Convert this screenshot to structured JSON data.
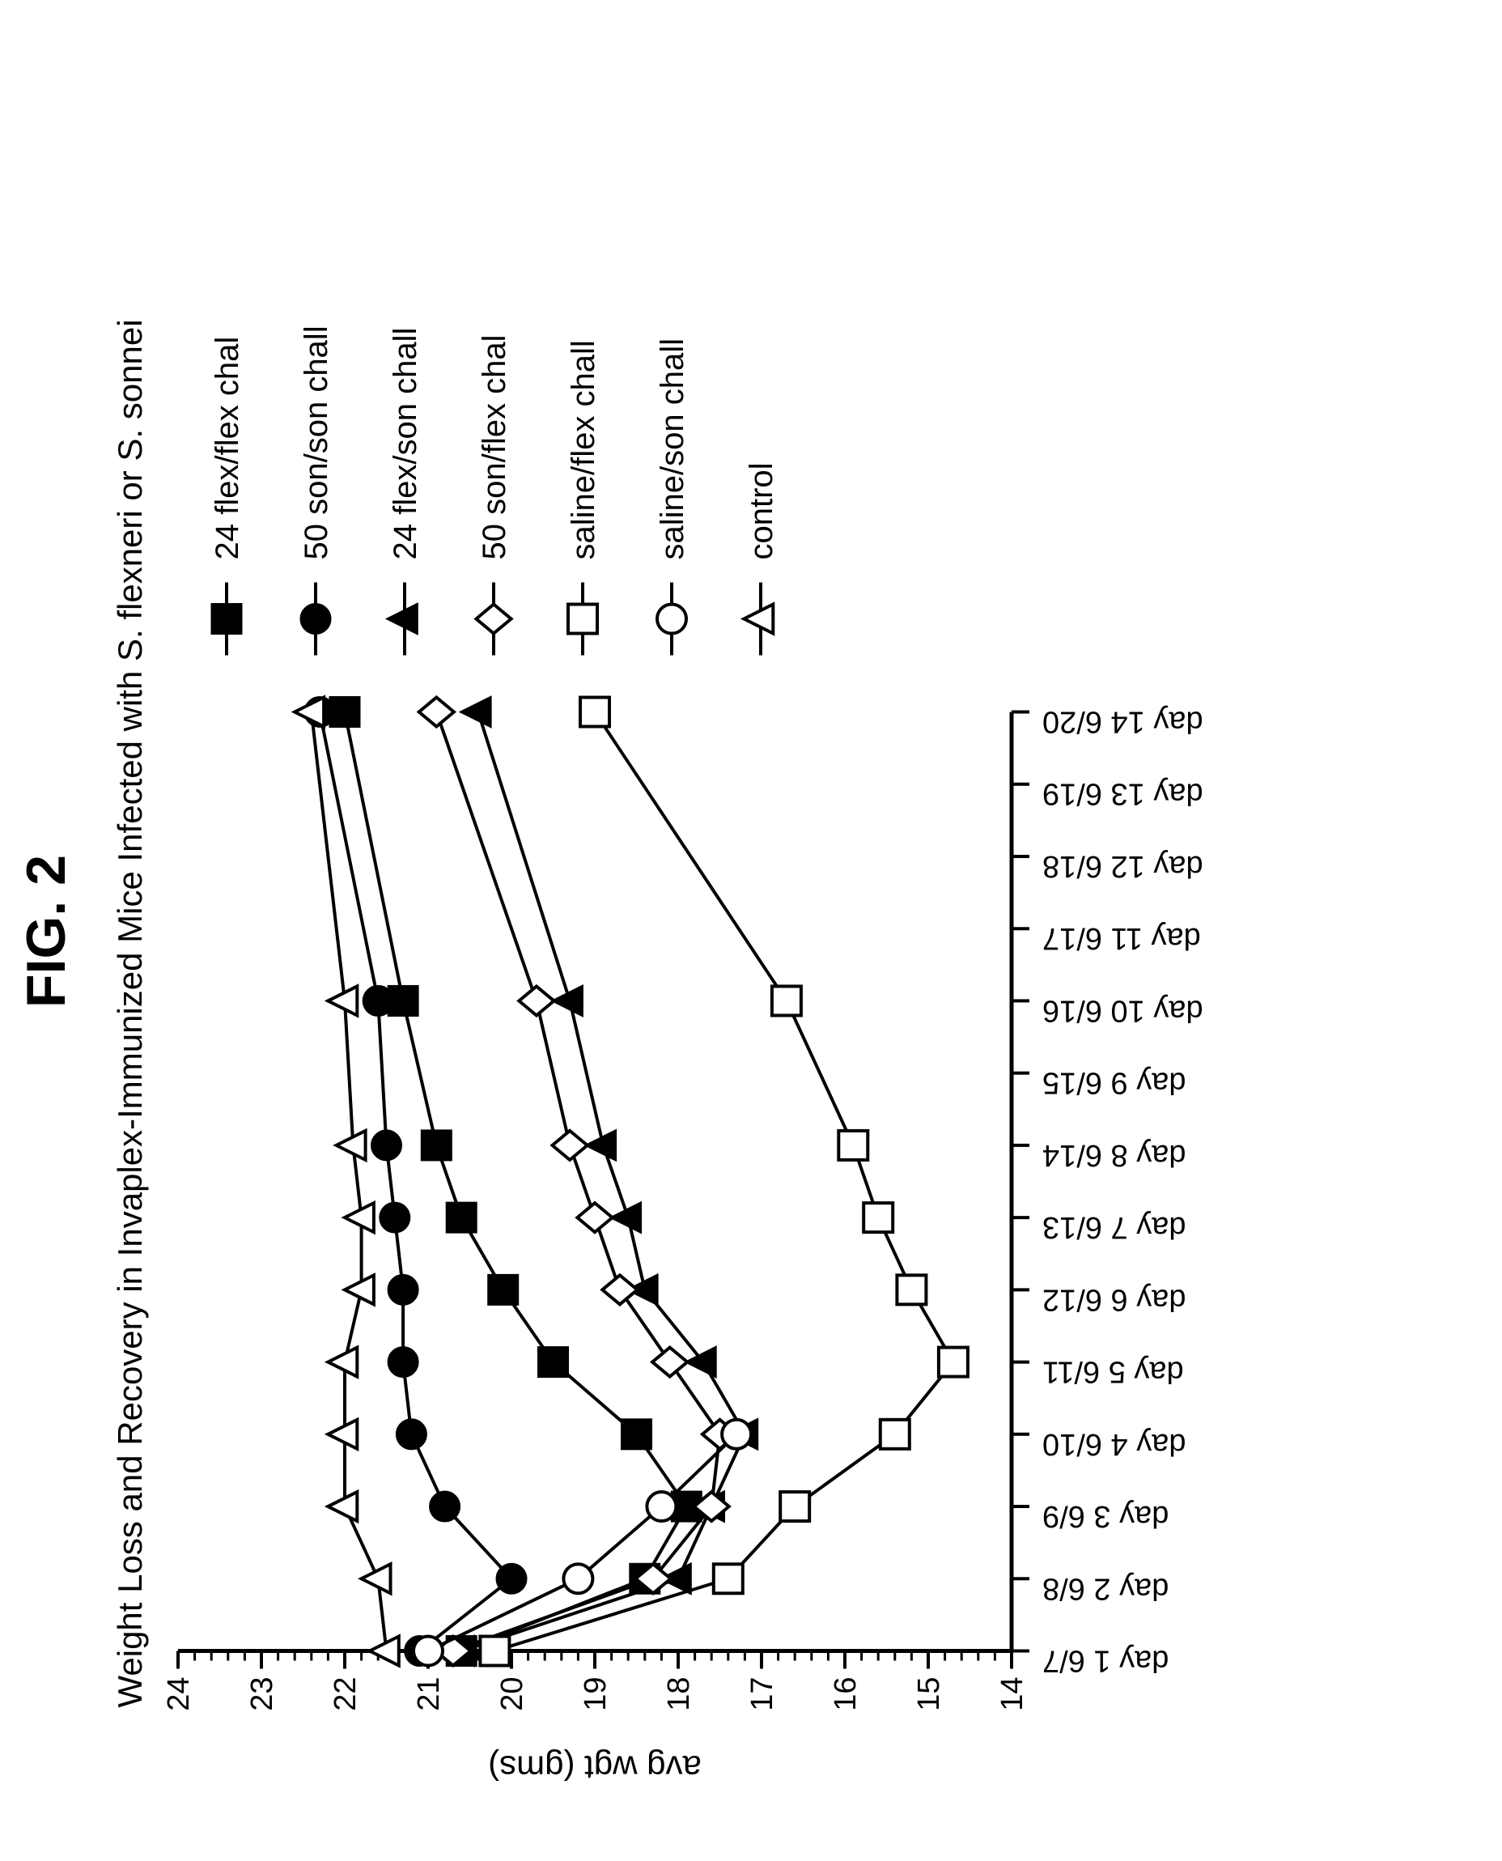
{
  "figure_label": "FIG. 2",
  "title": "Weight Loss and Recovery in Invaplex-Immunized Mice Infected with S. flexneri or S. sonnei",
  "chart": {
    "type": "line",
    "background_color": "#ffffff",
    "line_color": "#000000",
    "text_color": "#000000",
    "font_family": "Arial",
    "figure_label_fontsize": 68,
    "title_fontsize": 42,
    "axis_label_fontsize": 42,
    "tick_label_fontsize": 38,
    "legend_fontsize": 40,
    "series_line_width": 4,
    "axis_line_width": 5,
    "marker_size": 18,
    "x": {
      "ticks": [
        1,
        2,
        3,
        4,
        5,
        6,
        7,
        8,
        9,
        10,
        11,
        12,
        13,
        14
      ],
      "labels": [
        "day 1  6/7",
        "day 2  6/8",
        "day 3   6/9",
        "day 4  6/10",
        "day 5  6/11",
        "day 6  6/12",
        "day 7  6/13",
        "day 8  6/14",
        "day 9  6/15",
        "day 10  6/16",
        "day 11  6/17",
        "day 12  6/18",
        "day 13  6/19",
        "day 14  6/20"
      ]
    },
    "y": {
      "label": "avg wgt (gms)",
      "min": 14,
      "max": 24,
      "major_step": 1,
      "minor_per_major": 5
    },
    "series": [
      {
        "id": "24-flex-flex",
        "label": "24 flex/flex chal",
        "marker": "square-filled",
        "x": [
          1,
          2,
          3,
          4,
          5,
          6,
          7,
          8,
          10,
          14
        ],
        "y": [
          20.6,
          18.4,
          17.9,
          18.5,
          19.5,
          20.1,
          20.6,
          20.9,
          21.3,
          22.0
        ]
      },
      {
        "id": "50-son-son",
        "label": "50 son/son chall",
        "marker": "circle-filled",
        "x": [
          1,
          2,
          3,
          4,
          5,
          6,
          7,
          8,
          10,
          14
        ],
        "y": [
          21.1,
          20.0,
          20.8,
          21.2,
          21.3,
          21.3,
          21.4,
          21.5,
          21.6,
          22.3
        ]
      },
      {
        "id": "24-flex-son",
        "label": "24 flex/son chall",
        "marker": "triangle-filled",
        "x": [
          1,
          2,
          3,
          4,
          5,
          6,
          7,
          8,
          10,
          14
        ],
        "y": [
          20.6,
          18.0,
          17.6,
          17.2,
          17.7,
          18.4,
          18.6,
          18.9,
          19.3,
          20.4
        ]
      },
      {
        "id": "50-son-flex",
        "label": "50 son/flex chal",
        "marker": "diamond-open",
        "x": [
          1,
          2,
          3,
          4,
          5,
          6,
          7,
          8,
          10,
          14
        ],
        "y": [
          20.7,
          18.3,
          17.6,
          17.5,
          18.1,
          18.7,
          19.0,
          19.3,
          19.7,
          20.9
        ]
      },
      {
        "id": "saline-flex",
        "label": "saline/flex chall",
        "marker": "square-open",
        "x": [
          1,
          2,
          3,
          4,
          5,
          6,
          7,
          8,
          10,
          14
        ],
        "y": [
          20.2,
          17.4,
          16.6,
          15.4,
          14.7,
          15.2,
          15.6,
          15.9,
          16.7,
          19.0
        ]
      },
      {
        "id": "saline-son",
        "label": "saline/son chall",
        "marker": "circle-open",
        "x": [
          1,
          2,
          3,
          4
        ],
        "y": [
          21.0,
          19.2,
          18.2,
          17.3
        ]
      },
      {
        "id": "control",
        "label": "control",
        "marker": "triangle-open",
        "x": [
          1,
          2,
          3,
          4,
          5,
          6,
          7,
          8,
          10,
          14
        ],
        "y": [
          21.5,
          21.6,
          22.0,
          22.0,
          22.0,
          21.8,
          21.8,
          21.9,
          22.0,
          22.4
        ]
      }
    ],
    "legend": {
      "position": "right",
      "line_length": 90
    }
  }
}
